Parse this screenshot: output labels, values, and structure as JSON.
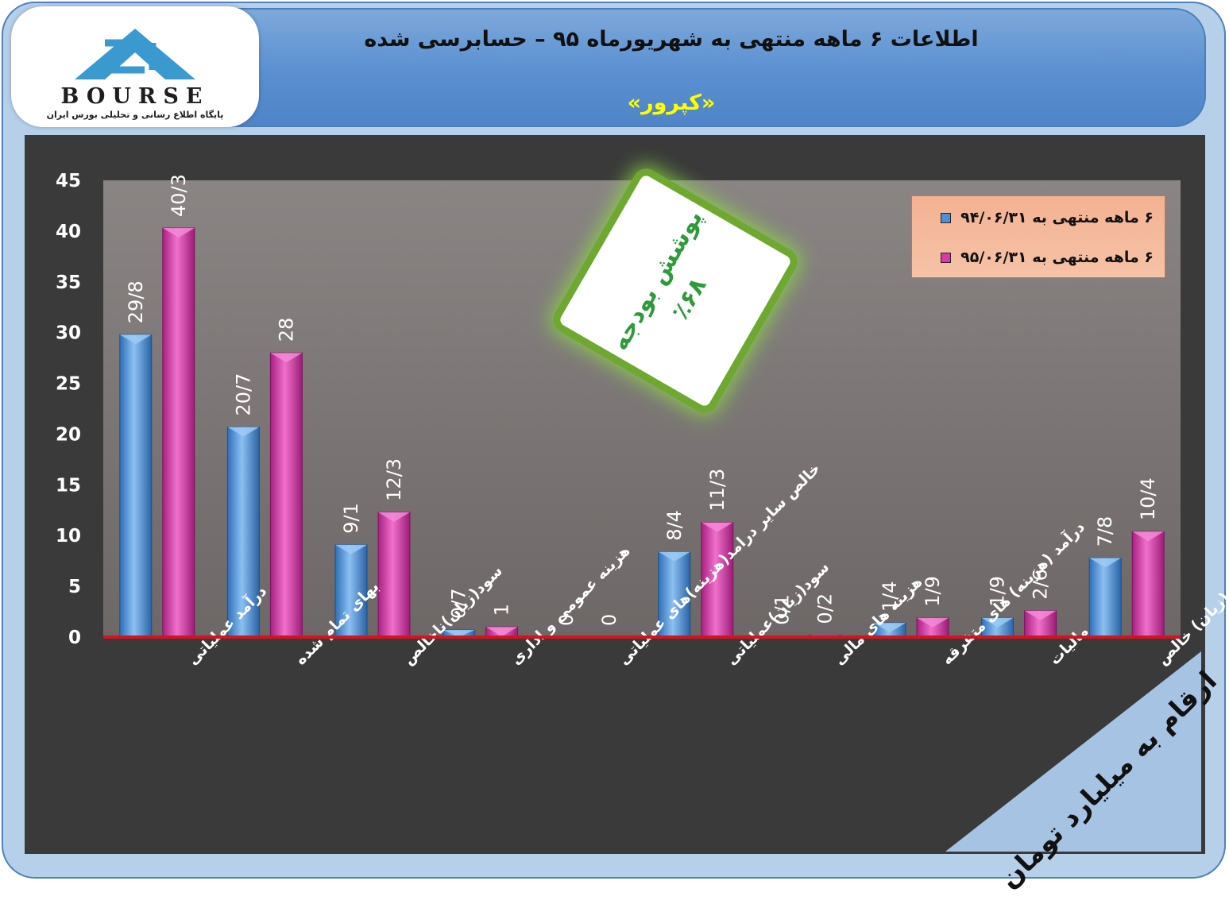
{
  "header": {
    "title": "اطلاعات ۶ ماهه منتهی به شهریورماه ۹۵ – حسابرسی شده",
    "company": "«کپرور»",
    "logo_text": "BOURSE",
    "logo_subtext": "پایگاه اطلاع رسانی و تحلیلی بورس ایران"
  },
  "badge": {
    "line1": "پوشش بودجه",
    "line2": "٪۶۸"
  },
  "unit_note": "ارقام به میلیارد تومان",
  "colors": {
    "series_1": "#4f8fd6",
    "series_2": "#d83aa8",
    "baseline": "#d6121c",
    "plot_bg": "#7f7a78"
  },
  "chart_data": {
    "type": "bar",
    "categories": [
      "درآمد عملیاتی",
      "بهای تمام شده",
      "سود(زیان)ناخالص",
      "هزینه عمومی و اداری",
      "خالص سایر درامد(هزینه)های عملیاتی",
      "سود(زیان)عملیاتی",
      "هزینه های مالی",
      "درآمد (هزینه) های متفرقه",
      "مالیات",
      "سود(زیان) خالص"
    ],
    "series": [
      {
        "name": "۶ ماهه منتهی به ۹۴/۰۶/۳۱",
        "values": [
          29.8,
          20.7,
          9.1,
          0.7,
          0,
          8.4,
          0.1,
          1.4,
          1.9,
          7.8
        ],
        "labels": [
          "29/8",
          "20/7",
          "9/1",
          "0/7",
          "0",
          "8/4",
          "0/1",
          "1/4",
          "1/9",
          "7/8"
        ]
      },
      {
        "name": "۶ ماهه منتهی به ۹۵/۰۶/۳۱",
        "values": [
          40.3,
          28,
          12.3,
          1,
          0,
          11.3,
          0.2,
          1.9,
          2.6,
          10.4
        ],
        "labels": [
          "40/3",
          "28",
          "12/3",
          "1",
          "0",
          "11/3",
          "0/2",
          "1/9",
          "2/6",
          "10/4"
        ]
      }
    ],
    "y_ticks": [
      "0",
      "5",
      "10",
      "15",
      "20",
      "25",
      "30",
      "35",
      "40",
      "45"
    ],
    "ylim": [
      0,
      45
    ],
    "grid": false,
    "legend_position": "top-right"
  }
}
